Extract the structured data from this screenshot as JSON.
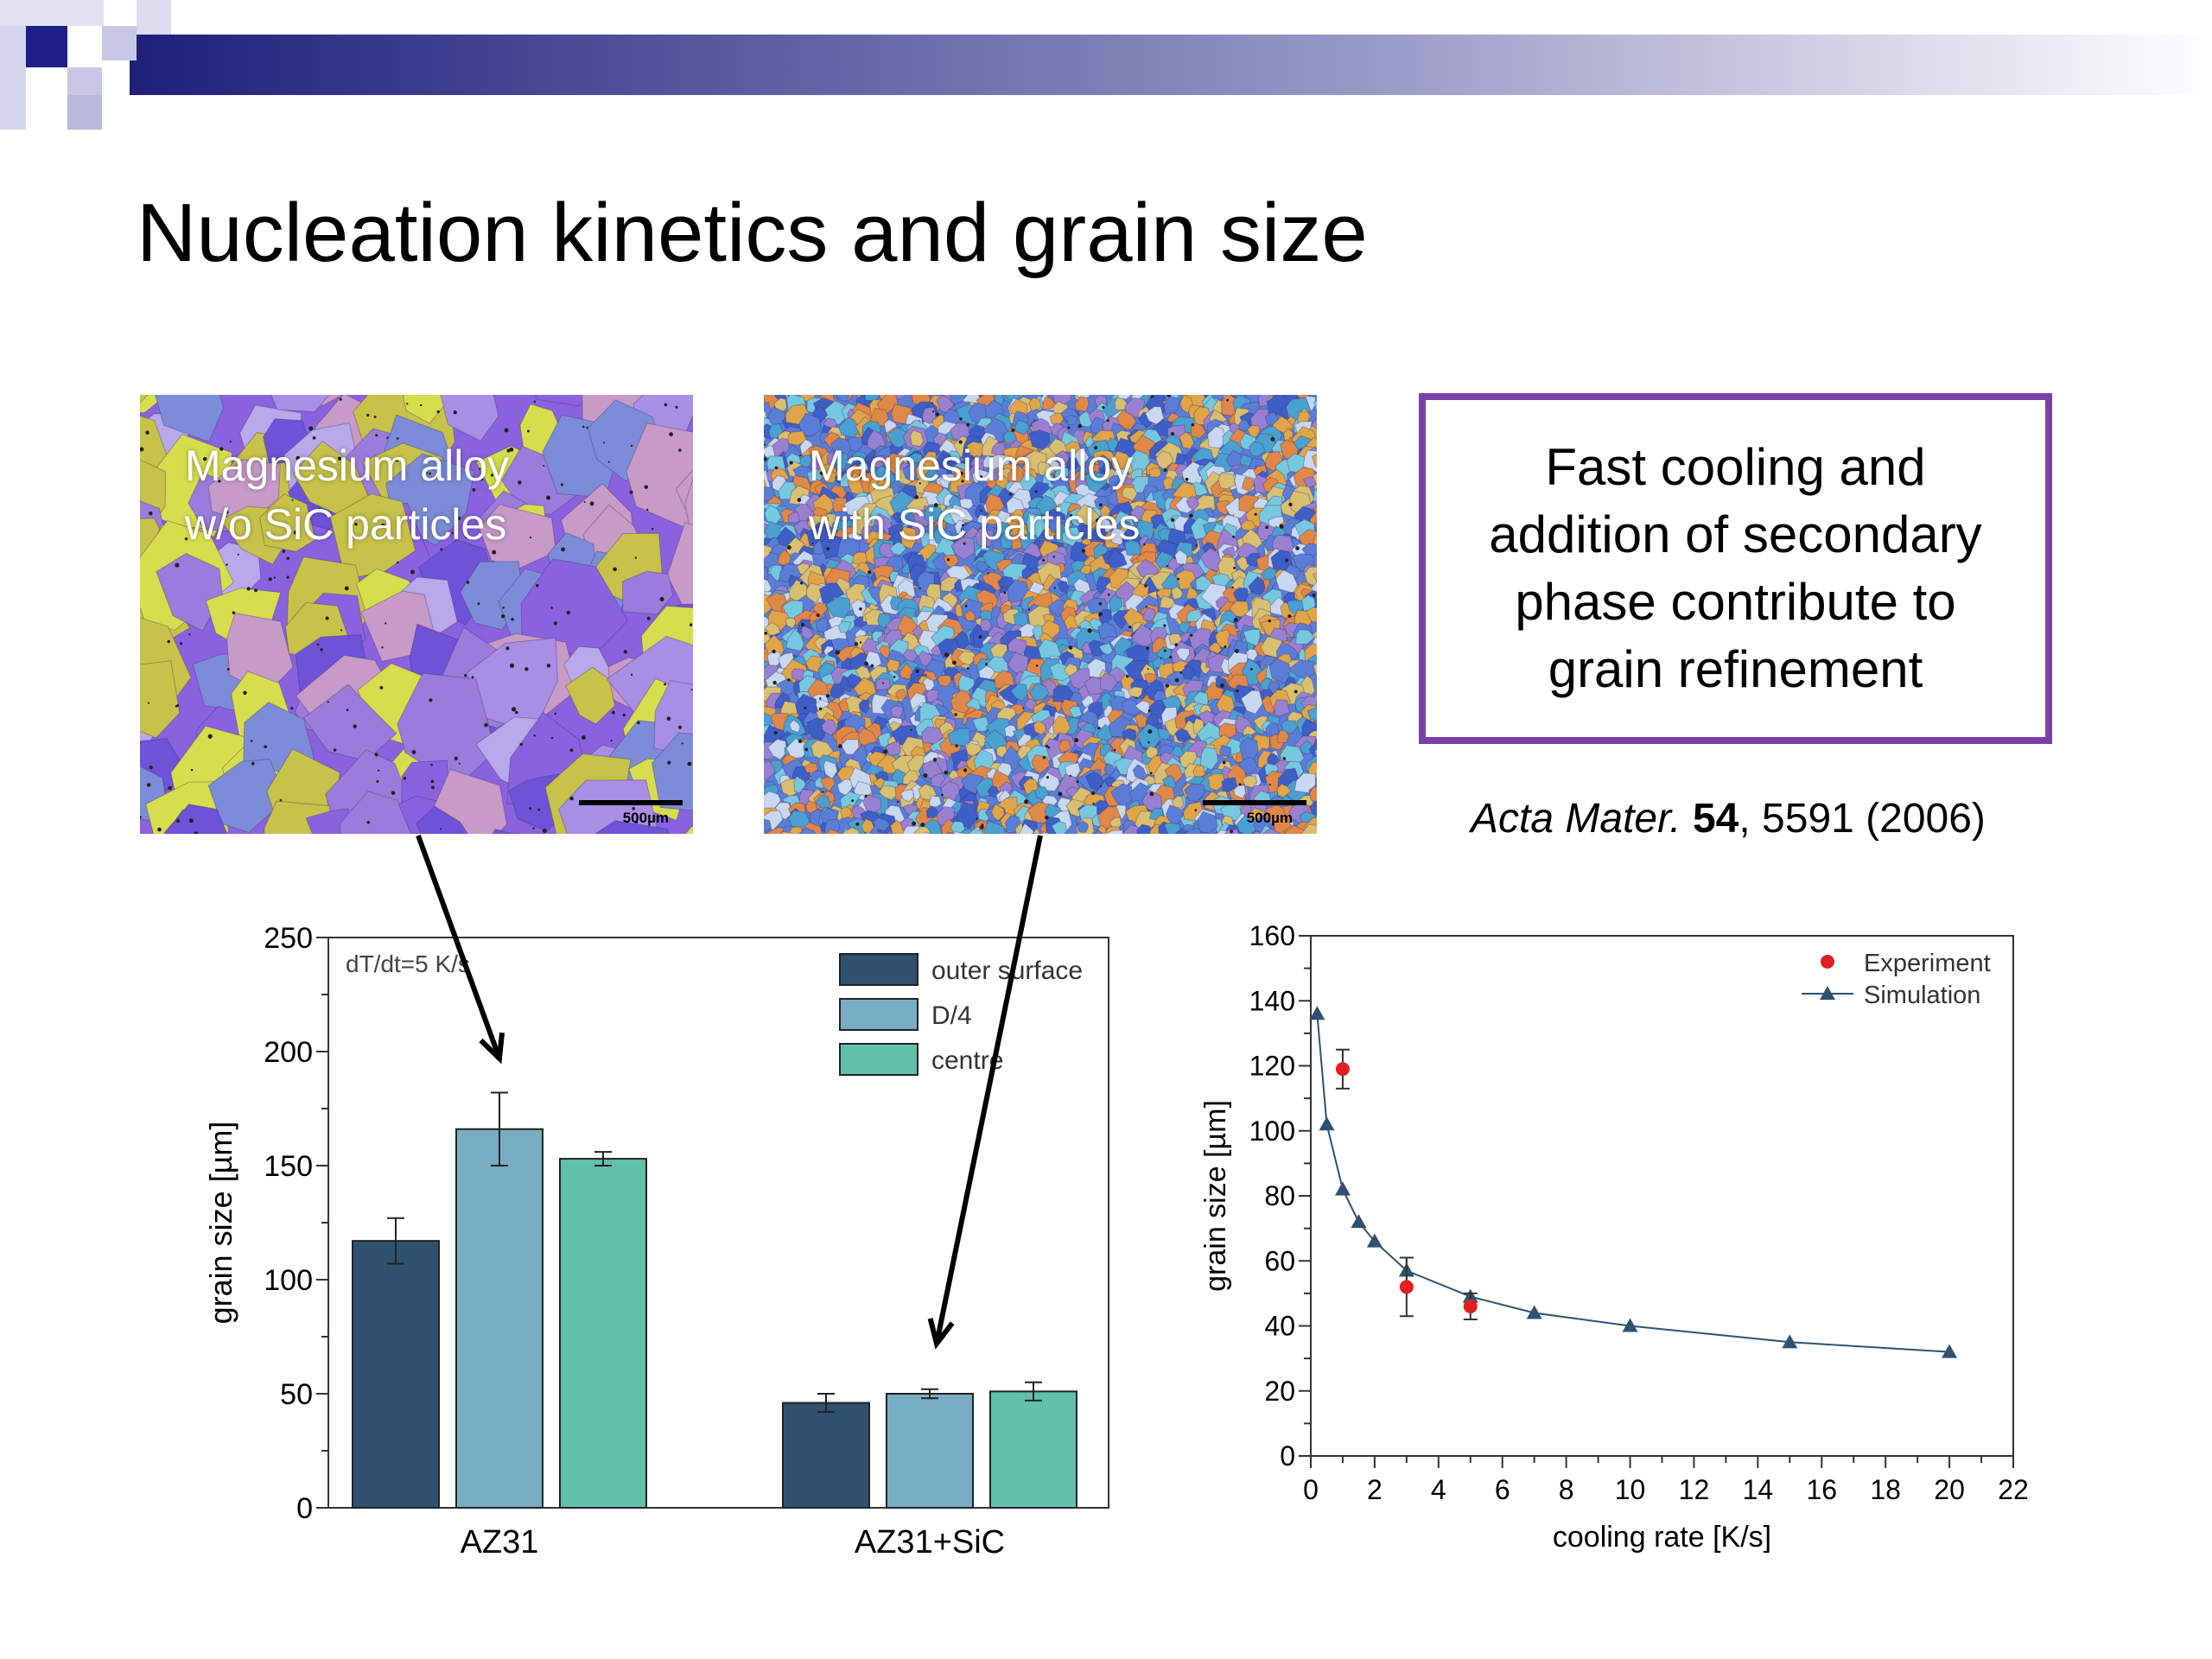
{
  "slide": {
    "title": "Nucleation kinetics and grain size",
    "colors": {
      "banner_dark": "#1f1f7a",
      "box_border": "#7a3fa8"
    }
  },
  "micrographs": [
    {
      "caption": "Magnesium alloy\nw/o SiC particles",
      "scale": "500µm"
    },
    {
      "caption": "Magnesium alloy\nwith SiC particles",
      "scale": "500µm"
    }
  ],
  "highlight_box": {
    "text": "Fast cooling and\naddition of secondary\nphase contribute to\ngrain refinement"
  },
  "citation": {
    "journal": "Acta Mater.",
    "volume": "54",
    "rest": ", 5591 (2006)"
  },
  "chart_data": [
    {
      "type": "bar",
      "ylabel": "grain size [µm]",
      "ylim": [
        0,
        250
      ],
      "yticks": [
        "0",
        "50",
        "100",
        "150",
        "200",
        "250"
      ],
      "categories": [
        "AZ31",
        "AZ31+SiC"
      ],
      "annotation": "dT/dt=5 K/s",
      "legend_position": "top-right",
      "series": [
        {
          "name": "outer surface",
          "color": "#2f5270",
          "values": [
            117,
            46
          ],
          "errors": [
            10,
            4
          ]
        },
        {
          "name": "D/4",
          "color": "#79adc1",
          "values": [
            166,
            50
          ],
          "errors": [
            16,
            2
          ]
        },
        {
          "name": "centre",
          "color": "#63c0ab",
          "values": [
            153,
            51
          ],
          "errors": [
            3,
            4
          ]
        }
      ]
    },
    {
      "type": "scatter",
      "xlabel": "cooling rate [K/s]",
      "ylabel": "grain size [µm]",
      "xlim": [
        0,
        22
      ],
      "ylim": [
        0,
        160
      ],
      "xticks": [
        "0",
        "2",
        "4",
        "6",
        "8",
        "10",
        "12",
        "14",
        "16",
        "18",
        "20",
        "22"
      ],
      "yticks": [
        "0",
        "20",
        "40",
        "60",
        "80",
        "100",
        "120",
        "140",
        "160"
      ],
      "legend_position": "top-right",
      "series": [
        {
          "name": "Experiment",
          "color": "#e02020",
          "marker": "circle",
          "x": [
            1,
            3,
            5
          ],
          "y": [
            119,
            52,
            46
          ],
          "errors": [
            6,
            9,
            4
          ]
        },
        {
          "name": "Simulation",
          "color": "#2f5270",
          "marker": "triangle",
          "x": [
            0.2,
            0.5,
            1,
            1.5,
            2,
            3,
            5,
            7,
            10,
            15,
            20
          ],
          "y": [
            136,
            102,
            82,
            72,
            66,
            57,
            49,
            44,
            40,
            35,
            32
          ],
          "errors": [
            0,
            0,
            0,
            0,
            0,
            4,
            0,
            0,
            0,
            0,
            0
          ]
        }
      ]
    }
  ]
}
